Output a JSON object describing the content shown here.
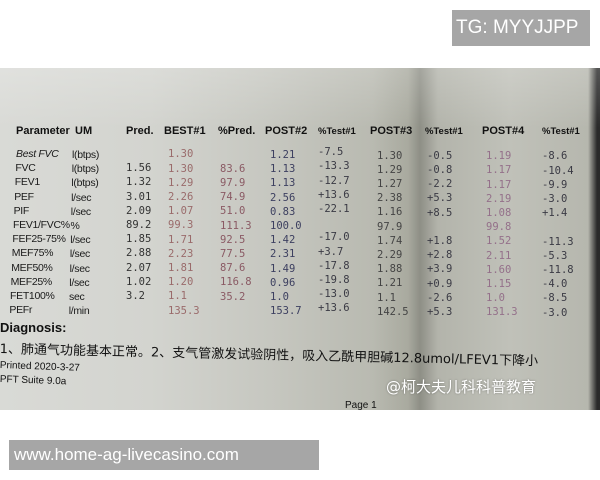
{
  "overlays": {
    "top_banner": "TG: MYYJJPP",
    "bottom_banner": "www.home-ag-livecasino.com",
    "watermark": "@柯大夫儿科科普教育"
  },
  "report": {
    "headers": [
      "Parameter",
      "UM",
      "Pred.",
      "BEST#1",
      "%Pred.",
      "POST#2",
      "%Test#1",
      "POST#3",
      "%Test#1",
      "POST#4",
      "%Test#1"
    ],
    "rows": [
      {
        "param": "Best FVC",
        "um": "l(btps)",
        "pred": "",
        "best1": "1.30",
        "pct_pred": "",
        "post2": "1.21",
        "test2": "-7.5",
        "post3": "1.30",
        "test3": "-0.5",
        "post4": "1.19",
        "test4": "-8.6"
      },
      {
        "param": "FVC",
        "um": "l(btps)",
        "pred": "1.56",
        "best1": "1.30",
        "pct_pred": "83.6",
        "post2": "1.13",
        "test2": "-13.3",
        "post3": "1.29",
        "test3": "-0.8",
        "post4": "1.17",
        "test4": "-10.4"
      },
      {
        "param": "FEV1",
        "um": "l(btps)",
        "pred": "1.32",
        "best1": "1.29",
        "pct_pred": "97.9",
        "post2": "1.13",
        "test2": "-12.7",
        "post3": "1.27",
        "test3": "-2.2",
        "post4": "1.17",
        "test4": "-9.9"
      },
      {
        "param": "PEF",
        "um": "l/sec",
        "pred": "3.01",
        "best1": "2.26",
        "pct_pred": "74.9",
        "post2": "2.56",
        "test2": "+13.6",
        "post3": "2.38",
        "test3": "+5.3",
        "post4": "2.19",
        "test4": "-3.0"
      },
      {
        "param": "PIF",
        "um": "l/sec",
        "pred": "2.09",
        "best1": "1.07",
        "pct_pred": "51.0",
        "post2": "0.83",
        "test2": "-22.1",
        "post3": "1.16",
        "test3": "+8.5",
        "post4": "1.08",
        "test4": "+1.4"
      },
      {
        "param": "FEV1/FVC%",
        "um": "%",
        "pred": "89.2",
        "best1": "99.3",
        "pct_pred": "111.3",
        "post2": "100.0",
        "test2": "",
        "post3": "97.9",
        "test3": "",
        "post4": "99.8",
        "test4": ""
      },
      {
        "param": "FEF25-75%",
        "um": "l/sec",
        "pred": "1.85",
        "best1": "1.71",
        "pct_pred": "92.5",
        "post2": "1.42",
        "test2": "-17.0",
        "post3": "1.74",
        "test3": "+1.8",
        "post4": "1.52",
        "test4": "-11.3"
      },
      {
        "param": "MEF75%",
        "um": "l/sec",
        "pred": "2.88",
        "best1": "2.23",
        "pct_pred": "77.5",
        "post2": "2.31",
        "test2": "+3.7",
        "post3": "2.29",
        "test3": "+2.8",
        "post4": "2.11",
        "test4": "-5.3"
      },
      {
        "param": "MEF50%",
        "um": "l/sec",
        "pred": "2.07",
        "best1": "1.81",
        "pct_pred": "87.6",
        "post2": "1.49",
        "test2": "-17.8",
        "post3": "1.88",
        "test3": "+3.9",
        "post4": "1.60",
        "test4": "-11.8"
      },
      {
        "param": "MEF25%",
        "um": "l/sec",
        "pred": "1.02",
        "best1": "1.20",
        "pct_pred": "116.8",
        "post2": "0.96",
        "test2": "-19.8",
        "post3": "1.21",
        "test3": "+0.9",
        "post4": "1.15",
        "test4": "-4.0"
      },
      {
        "param": "FET100%",
        "um": "sec",
        "pred": "3.2",
        "best1": "1.1",
        "pct_pred": "35.2",
        "post2": "1.0",
        "test2": "-13.0",
        "post3": "1.1",
        "test3": "-2.6",
        "post4": "1.0",
        "test4": "-8.5"
      },
      {
        "param": "PEFr",
        "um": "l/min",
        "pred": "",
        "best1": "135.3",
        "pct_pred": "",
        "post2": "153.7",
        "test2": "+13.6",
        "post3": "142.5",
        "test3": "+5.3",
        "post4": "131.3",
        "test4": "-3.0"
      }
    ],
    "diagnosis_label": "Diagnosis:",
    "diagnosis_text": "1、肺通气功能基本正常。2、支气管激发试验阴性，吸入乙酰甲胆碱12.8umol/LFEV1下降小",
    "printed": "Printed 2020-3-27",
    "software": "PFT Suite 9.0a",
    "page": "Page 1"
  }
}
